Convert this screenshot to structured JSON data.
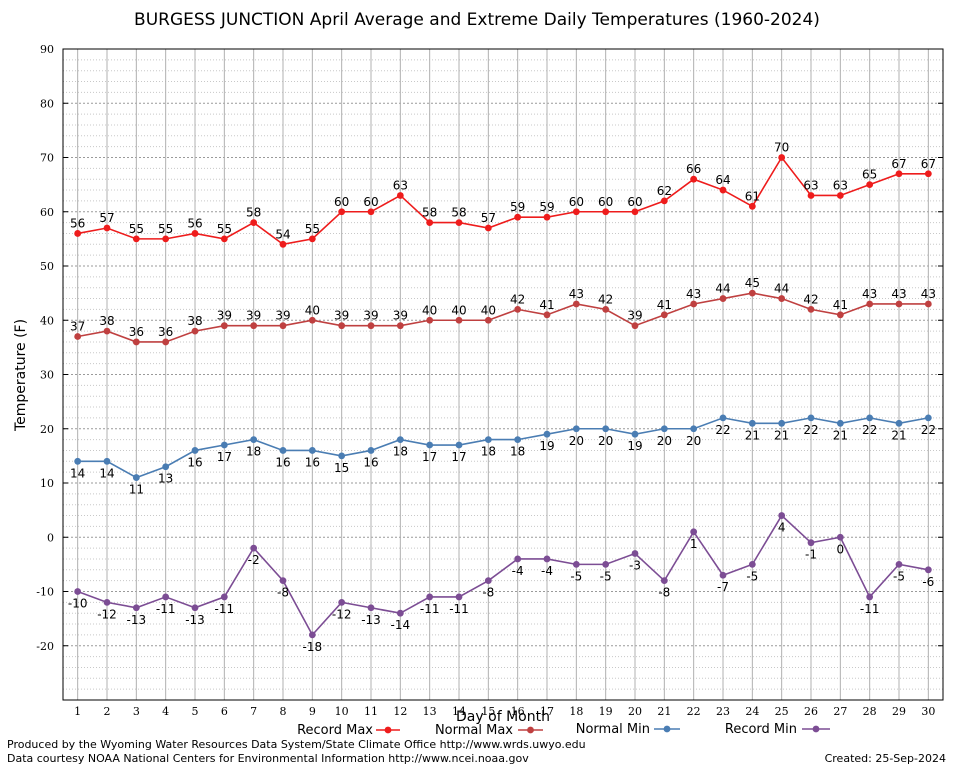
{
  "chart_data": {
    "type": "line",
    "title": "BURGESS JUNCTION April Average and Extreme Daily Temperatures (1960-2024)",
    "xlabel": "Day of Month",
    "ylabel": "Temperature (F)",
    "ylim": [
      -30,
      90
    ],
    "yticks": [
      -20,
      -10,
      0,
      10,
      20,
      30,
      40,
      50,
      60,
      70,
      80,
      90
    ],
    "x": [
      1,
      2,
      3,
      4,
      5,
      6,
      7,
      8,
      9,
      10,
      11,
      12,
      13,
      14,
      15,
      16,
      17,
      18,
      19,
      20,
      21,
      22,
      23,
      24,
      25,
      26,
      27,
      28,
      29,
      30
    ],
    "grid": true,
    "legend_position": "bottom",
    "series": [
      {
        "name": "Record Max",
        "color": "#ee1c1c",
        "label_position": "above",
        "values": [
          56,
          57,
          55,
          55,
          56,
          55,
          58,
          54,
          55,
          60,
          60,
          63,
          58,
          58,
          57,
          59,
          59,
          60,
          60,
          60,
          62,
          66,
          64,
          61,
          70,
          63,
          63,
          65,
          67,
          67
        ]
      },
      {
        "name": "Normal Max",
        "color": "#bf4040",
        "label_position": "above",
        "values": [
          37,
          38,
          36,
          36,
          38,
          39,
          39,
          39,
          40,
          39,
          39,
          39,
          40,
          40,
          40,
          42,
          41,
          43,
          42,
          39,
          41,
          43,
          44,
          45,
          44,
          42,
          41,
          43,
          43,
          43
        ]
      },
      {
        "name": "Normal Min",
        "color": "#4a7db3",
        "label_position": "below",
        "values": [
          14,
          14,
          11,
          13,
          16,
          17,
          18,
          16,
          16,
          15,
          16,
          18,
          17,
          17,
          18,
          18,
          19,
          20,
          20,
          19,
          20,
          20,
          22,
          21,
          21,
          22,
          21,
          22,
          21,
          22
        ]
      },
      {
        "name": "Record Min",
        "color": "#7c4d94",
        "label_position": "below",
        "values": [
          -10,
          -12,
          -13,
          -11,
          -13,
          -11,
          -2,
          -8,
          -18,
          -12,
          -13,
          -14,
          -11,
          -11,
          -8,
          -4,
          -4,
          -5,
          -5,
          -3,
          -8,
          1,
          -7,
          -5,
          4,
          -1,
          0,
          -11,
          -5,
          -6
        ]
      }
    ]
  },
  "footer": {
    "produced_by": "Produced by the Wyoming Water Resources Data System/State Climate Office http://www.wrds.uwyo.edu",
    "courtesy": "Data courtesy NOAA National Centers for Environmental Information http://www.ncei.noaa.gov",
    "created": "Created:  25-Sep-2024"
  }
}
